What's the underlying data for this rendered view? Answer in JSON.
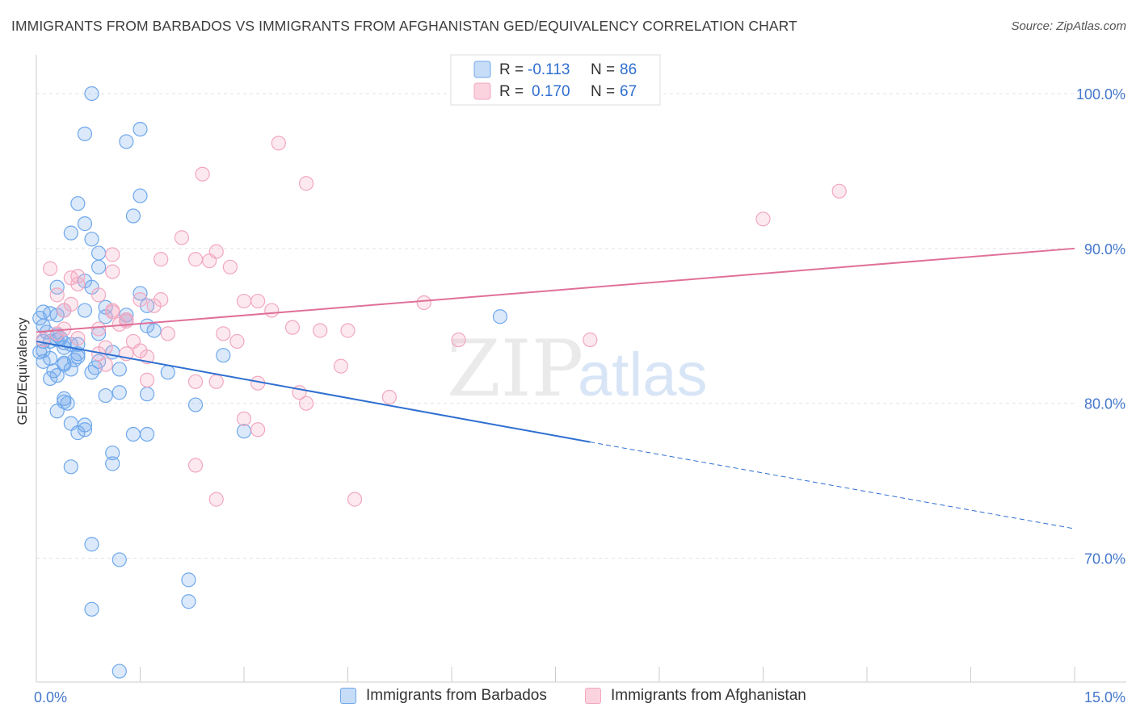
{
  "title": "IMMIGRANTS FROM BARBADOS VS IMMIGRANTS FROM AFGHANISTAN GED/EQUIVALENCY CORRELATION CHART",
  "source": "Source: ZipAtlas.com",
  "watermark": {
    "zip": "ZIP",
    "atlas": "atlas"
  },
  "colors": {
    "blue": "#6fa8ec",
    "blue_line": "#2f6fd0",
    "pink": "#f2a7bf",
    "pink_line": "#e0709a",
    "axis_label": "#4477cc"
  },
  "legend_top": {
    "rows": [
      {
        "r_label": "R =",
        "r_value": "-0.113",
        "n_label": "N =",
        "n_value": "86"
      },
      {
        "r_label": "R =",
        "r_value": "0.170",
        "n_label": "N =",
        "n_value": "67"
      }
    ]
  },
  "legend_bottom": {
    "items": [
      {
        "label": "Immigrants from Barbados"
      },
      {
        "label": "Immigrants from Afghanistan"
      }
    ]
  },
  "chart_data": {
    "type": "scatter",
    "ylabel": "GED/Equivalency",
    "xlim": [
      0,
      15
    ],
    "ylim": [
      62,
      102.5
    ],
    "y_ticks": [
      {
        "v": 100,
        "label": "100.0%"
      },
      {
        "v": 90,
        "label": "90.0%"
      },
      {
        "v": 80,
        "label": "80.0%"
      },
      {
        "v": 70,
        "label": "70.0%"
      }
    ],
    "x_tick_labels": [
      {
        "v": 0,
        "label": "0.0%"
      },
      {
        "v": 15,
        "label": "15.0%"
      }
    ],
    "x_ticks_minor": [
      0,
      1.5,
      3,
      4.5,
      6,
      7.5,
      9,
      10.5,
      12,
      13.5,
      15
    ],
    "grid": true,
    "series": [
      {
        "name": "Immigrants from Barbados",
        "color": "#6fa8ec",
        "trend": {
          "x0": 0,
          "y0": 84.0,
          "x1": 8.0,
          "y1": 77.5,
          "dash_x1": 15,
          "dash_y1": 71.9
        },
        "points": [
          [
            0.8,
            100.0
          ],
          [
            1.5,
            97.7
          ],
          [
            0.7,
            97.4
          ],
          [
            1.3,
            96.9
          ],
          [
            1.5,
            93.4
          ],
          [
            0.6,
            92.9
          ],
          [
            1.4,
            92.1
          ],
          [
            0.7,
            91.6
          ],
          [
            0.5,
            91.0
          ],
          [
            0.8,
            90.6
          ],
          [
            0.9,
            89.7
          ],
          [
            0.9,
            88.8
          ],
          [
            0.7,
            87.9
          ],
          [
            0.8,
            87.5
          ],
          [
            0.3,
            87.5
          ],
          [
            1.5,
            87.1
          ],
          [
            1.0,
            86.2
          ],
          [
            1.6,
            86.3
          ],
          [
            0.4,
            86.0
          ],
          [
            0.7,
            86.0
          ],
          [
            0.1,
            85.9
          ],
          [
            0.2,
            85.8
          ],
          [
            0.3,
            85.7
          ],
          [
            1.3,
            85.7
          ],
          [
            1.0,
            85.6
          ],
          [
            1.3,
            85.4
          ],
          [
            0.1,
            85.0
          ],
          [
            1.6,
            85.0
          ],
          [
            1.7,
            84.7
          ],
          [
            0.9,
            84.5
          ],
          [
            0.3,
            84.4
          ],
          [
            0.3,
            84.1
          ],
          [
            0.1,
            84.0
          ],
          [
            0.2,
            84.0
          ],
          [
            0.4,
            83.9
          ],
          [
            0.6,
            83.8
          ],
          [
            0.5,
            83.8
          ],
          [
            0.4,
            83.6
          ],
          [
            0.1,
            83.4
          ],
          [
            1.1,
            83.3
          ],
          [
            0.6,
            83.2
          ],
          [
            2.7,
            83.1
          ],
          [
            0.6,
            83.0
          ],
          [
            0.2,
            82.9
          ],
          [
            0.1,
            82.7
          ],
          [
            0.9,
            82.7
          ],
          [
            0.4,
            82.6
          ],
          [
            0.4,
            82.5
          ],
          [
            0.5,
            82.2
          ],
          [
            1.2,
            82.2
          ],
          [
            0.8,
            82.0
          ],
          [
            1.9,
            82.0
          ],
          [
            0.3,
            81.8
          ],
          [
            0.2,
            81.6
          ],
          [
            1.2,
            80.7
          ],
          [
            1.6,
            80.6
          ],
          [
            1.0,
            80.5
          ],
          [
            0.4,
            80.3
          ],
          [
            0.4,
            80.1
          ],
          [
            2.3,
            79.9
          ],
          [
            0.3,
            79.5
          ],
          [
            0.5,
            78.7
          ],
          [
            0.7,
            78.6
          ],
          [
            0.7,
            78.3
          ],
          [
            0.6,
            78.1
          ],
          [
            1.4,
            78.0
          ],
          [
            1.6,
            78.0
          ],
          [
            3.0,
            78.2
          ],
          [
            1.1,
            76.8
          ],
          [
            1.1,
            76.1
          ],
          [
            0.5,
            75.9
          ],
          [
            6.7,
            85.6
          ],
          [
            0.8,
            70.9
          ],
          [
            1.2,
            69.9
          ],
          [
            2.2,
            68.6
          ],
          [
            2.2,
            67.2
          ],
          [
            0.8,
            66.7
          ],
          [
            1.2,
            62.7
          ],
          [
            0.05,
            85.5
          ],
          [
            0.05,
            83.3
          ],
          [
            0.35,
            84.2
          ],
          [
            0.55,
            82.8
          ],
          [
            0.25,
            82.1
          ],
          [
            0.15,
            84.6
          ],
          [
            0.85,
            82.3
          ],
          [
            0.45,
            80.0
          ]
        ]
      },
      {
        "name": "Immigrants from Afghanistan",
        "color": "#f2a7bf",
        "trend": {
          "x0": 0,
          "y0": 84.6,
          "x1": 15,
          "y1": 90.0
        },
        "points": [
          [
            6.9,
            100.0
          ],
          [
            3.5,
            96.8
          ],
          [
            2.4,
            94.8
          ],
          [
            3.9,
            94.2
          ],
          [
            11.6,
            93.7
          ],
          [
            10.5,
            91.9
          ],
          [
            2.1,
            90.7
          ],
          [
            2.6,
            89.8
          ],
          [
            1.1,
            89.6
          ],
          [
            1.8,
            89.3
          ],
          [
            2.3,
            89.3
          ],
          [
            2.5,
            89.2
          ],
          [
            0.2,
            88.7
          ],
          [
            2.8,
            88.8
          ],
          [
            1.1,
            88.5
          ],
          [
            0.6,
            88.2
          ],
          [
            0.5,
            88.1
          ],
          [
            0.6,
            87.7
          ],
          [
            0.3,
            87.0
          ],
          [
            0.9,
            87.0
          ],
          [
            1.5,
            86.7
          ],
          [
            3.0,
            86.6
          ],
          [
            1.8,
            86.7
          ],
          [
            3.2,
            86.6
          ],
          [
            0.5,
            86.4
          ],
          [
            5.6,
            86.5
          ],
          [
            1.7,
            86.3
          ],
          [
            1.1,
            86.0
          ],
          [
            0.4,
            86.0
          ],
          [
            3.4,
            86.0
          ],
          [
            1.1,
            85.9
          ],
          [
            1.3,
            85.3
          ],
          [
            1.2,
            85.1
          ],
          [
            1.3,
            85.4
          ],
          [
            3.7,
            84.9
          ],
          [
            4.5,
            84.7
          ],
          [
            4.1,
            84.7
          ],
          [
            0.9,
            84.8
          ],
          [
            0.3,
            84.5
          ],
          [
            1.9,
            84.5
          ],
          [
            2.7,
            84.5
          ],
          [
            0.6,
            84.2
          ],
          [
            0.1,
            84.1
          ],
          [
            2.9,
            84.0
          ],
          [
            1.4,
            84.0
          ],
          [
            6.1,
            84.1
          ],
          [
            8.0,
            84.1
          ],
          [
            1.5,
            83.4
          ],
          [
            0.9,
            83.2
          ],
          [
            1.0,
            83.6
          ],
          [
            1.3,
            83.2
          ],
          [
            1.6,
            83.0
          ],
          [
            1.0,
            82.5
          ],
          [
            4.4,
            82.4
          ],
          [
            1.6,
            81.5
          ],
          [
            2.3,
            81.4
          ],
          [
            2.6,
            81.4
          ],
          [
            3.2,
            81.3
          ],
          [
            3.8,
            80.7
          ],
          [
            5.1,
            80.4
          ],
          [
            3.9,
            80.0
          ],
          [
            3.0,
            79.0
          ],
          [
            3.2,
            78.3
          ],
          [
            2.3,
            76.0
          ],
          [
            2.6,
            73.8
          ],
          [
            4.6,
            73.8
          ],
          [
            0.4,
            84.8
          ]
        ]
      }
    ]
  }
}
